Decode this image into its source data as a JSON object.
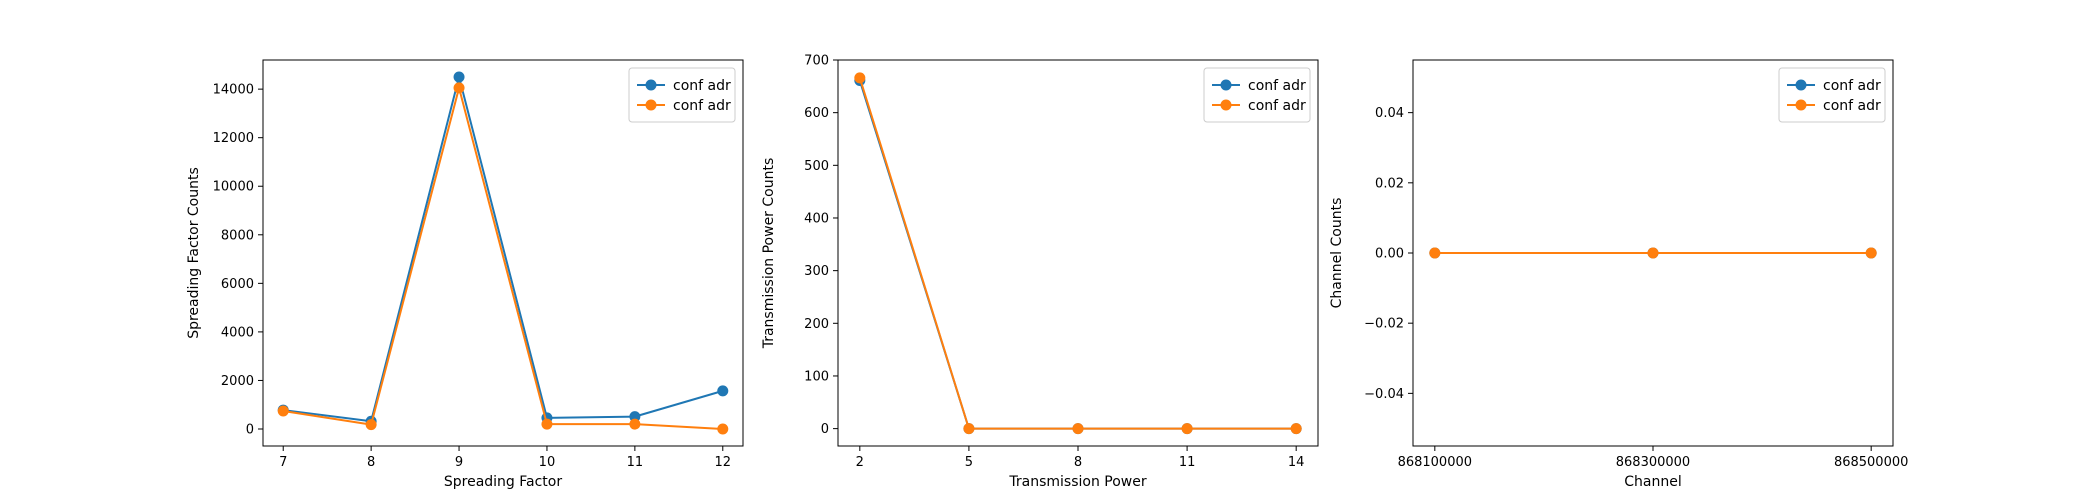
{
  "chart_data": [
    {
      "type": "line",
      "xlabel": "Spreading Factor",
      "ylabel": "Spreading Factor Counts",
      "x": [
        7,
        8,
        9,
        10,
        11,
        12
      ],
      "xticks": [
        "7",
        "8",
        "9",
        "10",
        "11",
        "12"
      ],
      "xlim": [
        6.77,
        12.23
      ],
      "ylim": [
        -700,
        15200
      ],
      "yticks": [
        0,
        2000,
        4000,
        6000,
        8000,
        10000,
        12000,
        14000
      ],
      "legend": "upper right",
      "grid": false,
      "series": [
        {
          "name": "conf adr",
          "color": "#1f77b4",
          "values": [
            780,
            320,
            14500,
            460,
            510,
            1570
          ]
        },
        {
          "name": "conf adr",
          "color": "#ff7f0e",
          "values": [
            740,
            180,
            14050,
            200,
            200,
            0
          ]
        }
      ]
    },
    {
      "type": "line",
      "xlabel": "Transmission Power",
      "ylabel": "Transmission Power Counts",
      "x": [
        2,
        5,
        8,
        11,
        14
      ],
      "xticks": [
        "2",
        "5",
        "8",
        "11",
        "14"
      ],
      "xlim": [
        1.4,
        14.6
      ],
      "ylim": [
        -33,
        700
      ],
      "yticks": [
        0,
        100,
        200,
        300,
        400,
        500,
        600,
        700
      ],
      "legend": "upper right",
      "grid": false,
      "series": [
        {
          "name": "conf adr",
          "color": "#1f77b4",
          "values": [
            661,
            0,
            0,
            0,
            0
          ]
        },
        {
          "name": "conf adr",
          "color": "#ff7f0e",
          "values": [
            666,
            0,
            0,
            0,
            0
          ]
        }
      ]
    },
    {
      "type": "line",
      "xlabel": "Channel",
      "ylabel": "Channel Counts",
      "x": [
        868100000,
        868300000,
        868500000
      ],
      "xticks": [
        "868100000",
        "868300000",
        "868500000"
      ],
      "xlim": [
        868080000,
        868520000
      ],
      "ylim": [
        -0.055,
        0.055
      ],
      "yticks": [
        -0.04,
        -0.02,
        0.0,
        0.02,
        0.04
      ],
      "ytick_labels": [
        "−0.04",
        "−0.02",
        "0.00",
        "0.02",
        "0.04"
      ],
      "legend": "upper right",
      "grid": false,
      "series": [
        {
          "name": "conf adr",
          "color": "#1f77b4",
          "values": [
            0,
            0,
            0
          ]
        },
        {
          "name": "conf adr",
          "color": "#ff7f0e",
          "values": [
            0,
            0,
            0
          ]
        }
      ]
    }
  ]
}
